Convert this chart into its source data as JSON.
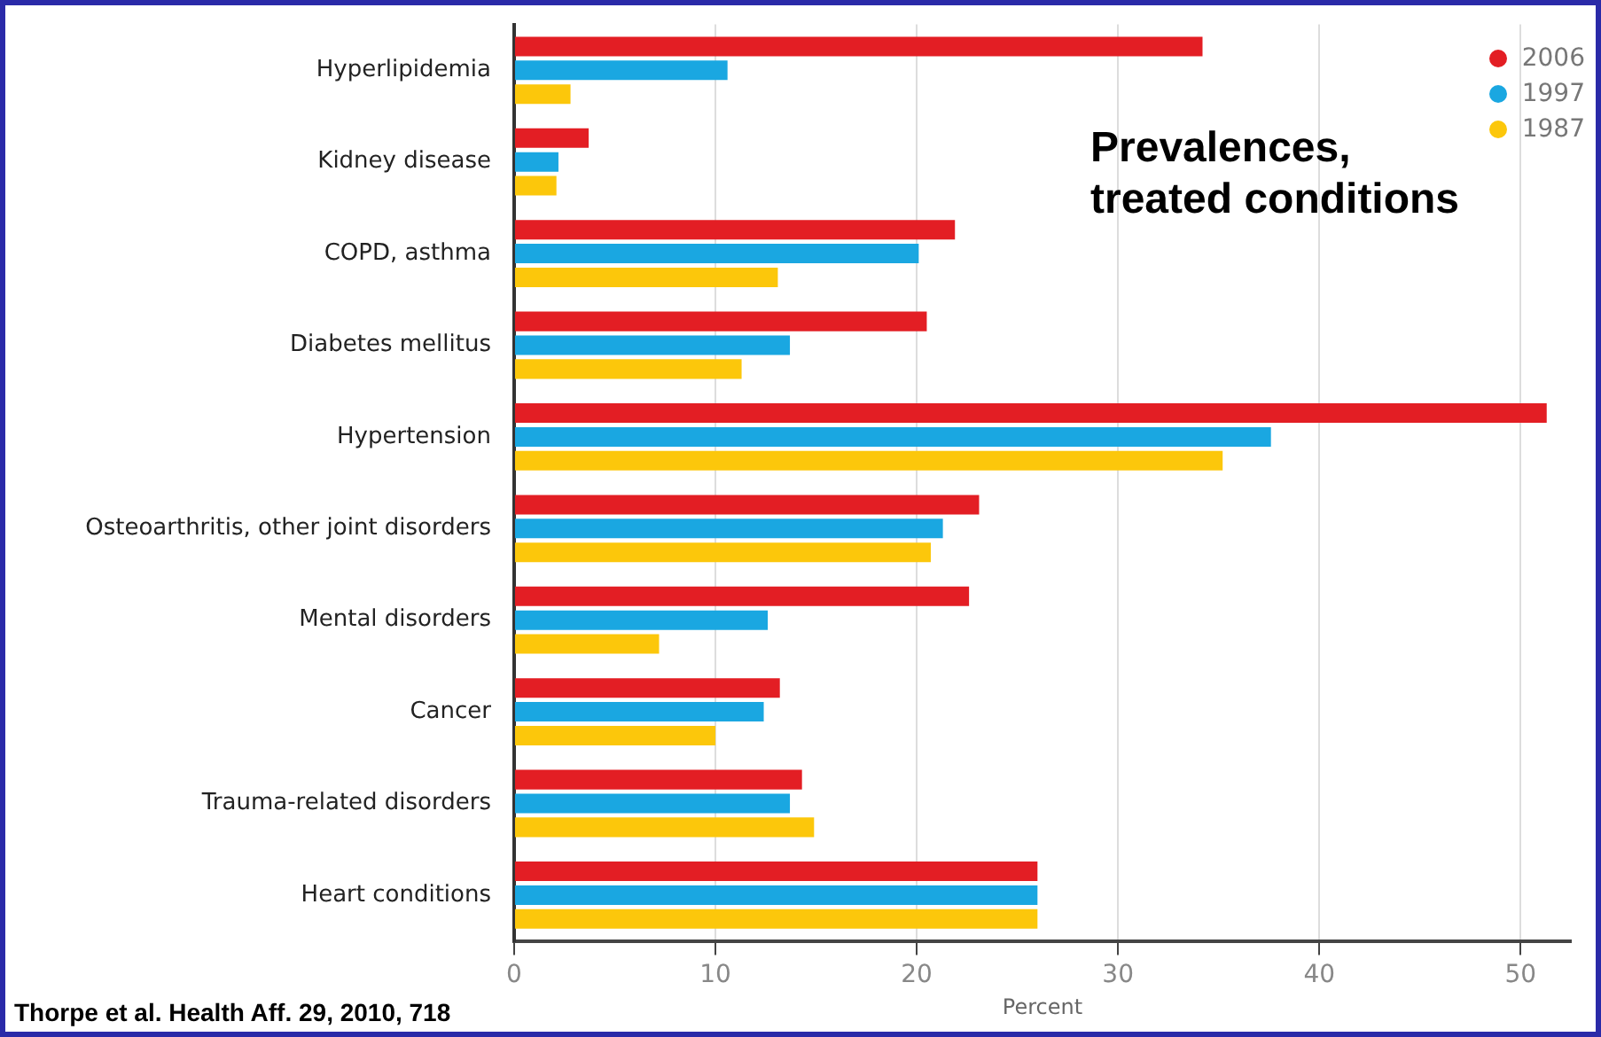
{
  "chart_data": {
    "type": "bar",
    "orientation": "horizontal",
    "title": "Prevalences,\ntreated conditions",
    "xlabel": "Percent",
    "categories": [
      "Hyperlipidemia",
      "Kidney disease",
      "COPD, asthma",
      "Diabetes mellitus",
      "Hypertension",
      "Osteoarthritis, other joint disorders",
      "Mental disorders",
      "Cancer",
      "Trauma-related disorders",
      "Heart conditions"
    ],
    "series": [
      {
        "name": "2006",
        "color": "#e31e24",
        "values": [
          34.2,
          3.7,
          21.9,
          20.5,
          51.3,
          23.1,
          22.6,
          13.2,
          14.3,
          26.0
        ]
      },
      {
        "name": "1997",
        "color": "#1aa7e1",
        "values": [
          10.6,
          2.2,
          20.1,
          13.7,
          37.6,
          21.3,
          12.6,
          12.4,
          13.7,
          26.0
        ]
      },
      {
        "name": "1987",
        "color": "#fcc70b",
        "values": [
          2.8,
          2.1,
          13.1,
          11.3,
          35.2,
          20.7,
          7.2,
          10.0,
          14.9,
          26.0
        ]
      }
    ],
    "xlim": [
      0,
      52.5
    ],
    "xticks": [
      0,
      10,
      20,
      30,
      40,
      50
    ],
    "grid": "x",
    "legend": "top right",
    "marker": "circle",
    "annotations": [
      "Thorpe et al. Health Aff. 29, 2010, 718"
    ]
  }
}
